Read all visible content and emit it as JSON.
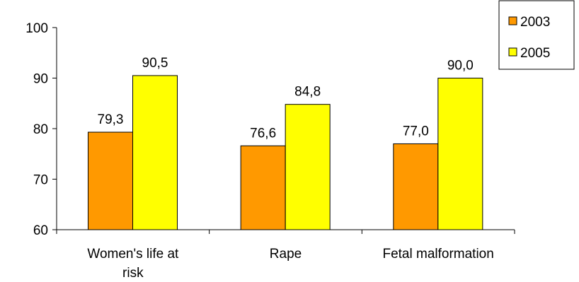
{
  "chart_data": {
    "type": "bar",
    "categories": [
      [
        "Women's life at",
        "risk"
      ],
      [
        "Rape"
      ],
      [
        "Fetal malformation"
      ]
    ],
    "series": [
      {
        "name": "2003",
        "color": "#FF9900",
        "values": [
          79.3,
          76.6,
          77.0
        ],
        "labels": [
          "79,3",
          "76,6",
          "77,0"
        ]
      },
      {
        "name": "2005",
        "color": "#FFFF00",
        "values": [
          90.5,
          84.8,
          90.0
        ],
        "labels": [
          "90,5",
          "84,8",
          "90,0"
        ]
      }
    ],
    "ylim": [
      60,
      100
    ],
    "yticks": [
      60,
      70,
      80,
      90,
      100
    ],
    "legend_position": "top-right",
    "grid": false
  }
}
